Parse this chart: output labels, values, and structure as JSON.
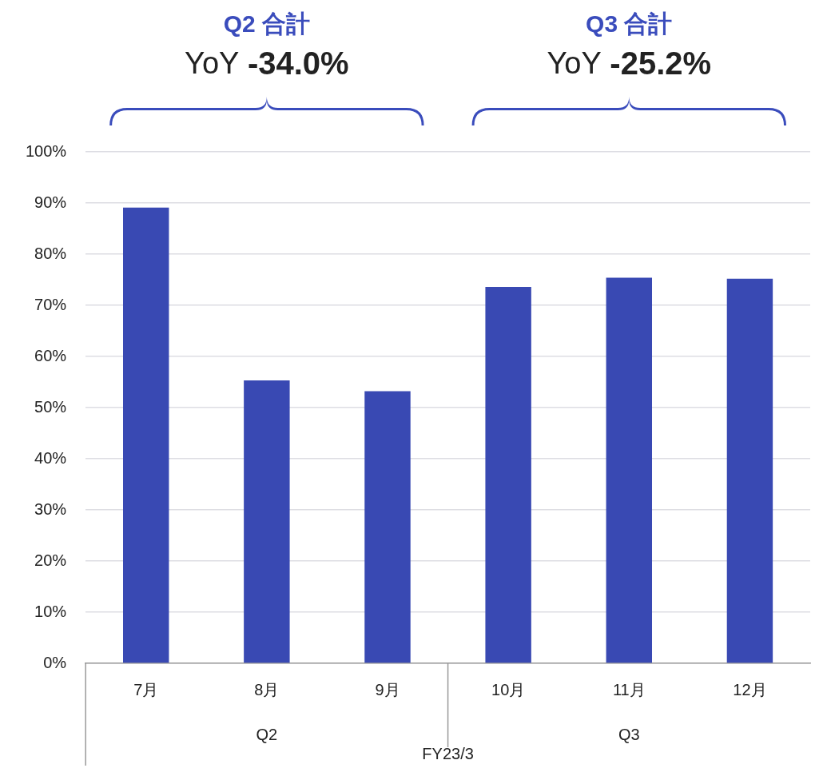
{
  "chart_data": {
    "type": "bar",
    "categories": [
      "7月",
      "8月",
      "9月",
      "10月",
      "11月",
      "12月"
    ],
    "values": [
      89.1,
      55.3,
      53.2,
      73.6,
      75.4,
      75.2
    ],
    "color": "#3949b3",
    "xlabel": "FY23/3",
    "ylim": [
      0,
      100
    ],
    "yticks": [
      {
        "value": 0,
        "label": "0%"
      },
      {
        "value": 10,
        "label": "10%"
      },
      {
        "value": 20,
        "label": "20%"
      },
      {
        "value": 30,
        "label": "30%"
      },
      {
        "value": 40,
        "label": "40%"
      },
      {
        "value": 50,
        "label": "50%"
      },
      {
        "value": 60,
        "label": "60%"
      },
      {
        "value": 70,
        "label": "70%"
      },
      {
        "value": 80,
        "label": "80%"
      },
      {
        "value": 90,
        "label": "90%"
      },
      {
        "value": 100,
        "label": "100%"
      }
    ],
    "grid": "y",
    "legend": false,
    "annotations": [
      "Q2 合計",
      "YoY -34.0%",
      "Q2",
      "Q3 合計",
      "YoY -25.2%",
      "Q3"
    ]
  }
}
